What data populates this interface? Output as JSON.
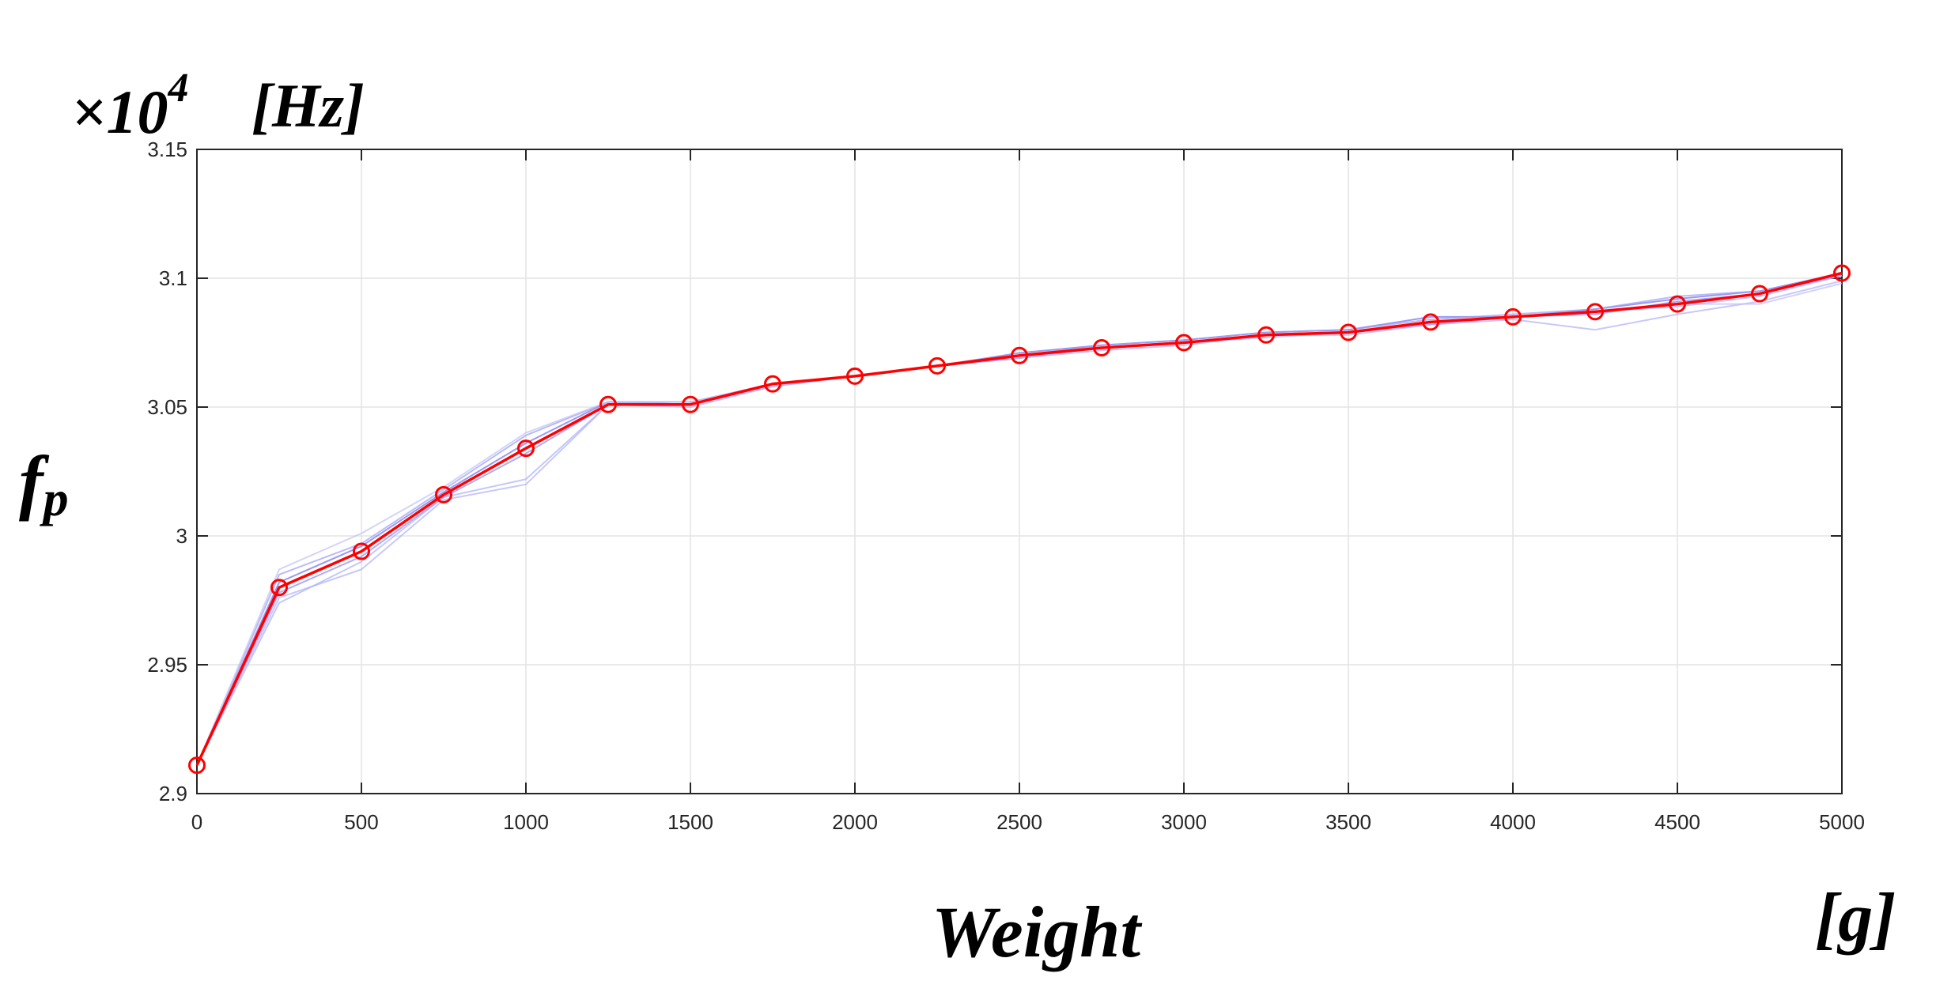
{
  "chart_data": {
    "type": "line",
    "multiplier_label": "×10",
    "multiplier_exponent": "4",
    "unit_y": "[Hz]",
    "ylabel_main": "f",
    "ylabel_sub": "p",
    "xlabel": "Weight",
    "unit_x": "[g]",
    "xlim": [
      0,
      5000
    ],
    "ylim": [
      2.9,
      3.15
    ],
    "grid": true,
    "x_ticks": [
      "0",
      "500",
      "1000",
      "1500",
      "2000",
      "2500",
      "3000",
      "3500",
      "4000",
      "4500",
      "5000"
    ],
    "y_ticks": [
      "2.9",
      "2.95",
      "3",
      "3.05",
      "3.1",
      "3.15"
    ],
    "x": [
      0,
      250,
      500,
      750,
      1000,
      1250,
      1500,
      1750,
      2000,
      2250,
      2500,
      2750,
      3000,
      3250,
      3500,
      3750,
      4000,
      4250,
      4500,
      4750,
      5000
    ],
    "series": [
      {
        "role": "mean",
        "color": "#ff0000",
        "marker": "circle",
        "values": [
          2.911,
          2.98,
          2.994,
          3.016,
          3.034,
          3.051,
          3.051,
          3.059,
          3.062,
          3.066,
          3.07,
          3.073,
          3.075,
          3.078,
          3.079,
          3.083,
          3.085,
          3.087,
          3.09,
          3.094,
          3.102
        ]
      },
      {
        "role": "trial",
        "color": "#6e6ef0",
        "values": [
          2.911,
          2.982,
          2.996,
          3.017,
          3.036,
          3.052,
          3.051,
          3.059,
          3.062,
          3.066,
          3.071,
          3.074,
          3.076,
          3.079,
          3.08,
          3.085,
          3.085,
          3.088,
          3.092,
          3.095,
          3.102
        ]
      },
      {
        "role": "trial",
        "color": "#8a8af2",
        "values": [
          2.911,
          2.978,
          2.992,
          3.015,
          3.032,
          3.051,
          3.051,
          3.059,
          3.062,
          3.066,
          3.069,
          3.073,
          3.075,
          3.078,
          3.079,
          3.082,
          3.085,
          3.086,
          3.091,
          3.094,
          3.101
        ]
      },
      {
        "role": "trial",
        "color": "#9c9cf4",
        "values": [
          2.911,
          2.985,
          2.997,
          3.018,
          3.039,
          3.052,
          3.052,
          3.059,
          3.062,
          3.066,
          3.07,
          3.074,
          3.076,
          3.079,
          3.08,
          3.084,
          3.086,
          3.088,
          3.093,
          3.095,
          3.102
        ]
      },
      {
        "role": "trial",
        "color": "#b0b0f6",
        "values": [
          2.911,
          2.976,
          2.987,
          3.014,
          3.02,
          3.051,
          3.05,
          3.058,
          3.062,
          3.066,
          3.069,
          3.072,
          3.074,
          3.078,
          3.078,
          3.082,
          3.084,
          3.08,
          3.086,
          3.091,
          3.099
        ]
      },
      {
        "role": "trial",
        "color": "#c0c0f8",
        "values": [
          2.911,
          2.987,
          3.001,
          3.019,
          3.04,
          3.052,
          3.051,
          3.059,
          3.062,
          3.066,
          3.07,
          3.073,
          3.075,
          3.078,
          3.079,
          3.083,
          3.085,
          3.087,
          3.09,
          3.09,
          3.098
        ]
      },
      {
        "role": "trial",
        "color": "#aab0f6",
        "values": [
          2.911,
          2.974,
          2.99,
          3.015,
          3.022,
          3.051,
          3.051,
          3.058,
          3.062,
          3.066,
          3.069,
          3.073,
          3.075,
          3.077,
          3.079,
          3.082,
          3.085,
          3.087,
          3.089,
          3.093,
          3.101
        ]
      }
    ]
  }
}
